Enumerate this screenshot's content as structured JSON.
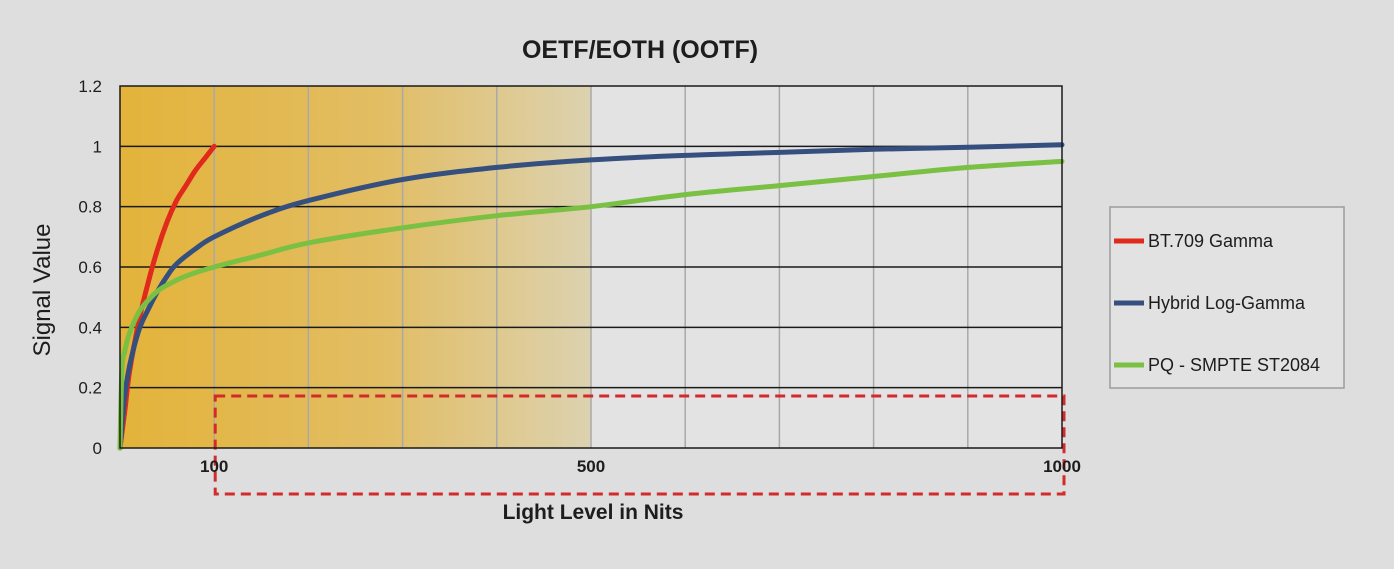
{
  "chart_data": {
    "type": "line",
    "title": "OETF/EOTH  (OOTF)",
    "xlabel": "Light Level in Nits",
    "ylabel": "Signal Value",
    "xlim": [
      0,
      1000
    ],
    "ylim": [
      0,
      1.2
    ],
    "x_ticks": [
      {
        "value": 100,
        "label": "100"
      },
      {
        "value": 500,
        "label": "500"
      },
      {
        "value": 1000,
        "label": "1000"
      }
    ],
    "y_ticks": [
      {
        "value": 0,
        "label": "0"
      },
      {
        "value": 0.2,
        "label": "0.2"
      },
      {
        "value": 0.4,
        "label": "0.4"
      },
      {
        "value": 0.6,
        "label": "0.6"
      },
      {
        "value": 0.8,
        "label": "0.8"
      },
      {
        "value": 1,
        "label": "1"
      },
      {
        "value": 1.2,
        "label": "1.2"
      }
    ],
    "x_grid_step": 100,
    "grid": true,
    "legend_position": "right",
    "highlight_region": {
      "x": [
        0,
        500
      ],
      "color_start": "#e3b33a",
      "color_end": "#dcd2b0"
    },
    "dashed_box": {
      "x": [
        100,
        1000
      ],
      "color": "#d22b2b"
    },
    "series": [
      {
        "name": "BT.709 Gamma",
        "color": "#e02a1c",
        "x": [
          0,
          5,
          10,
          20,
          30,
          40,
          50,
          60,
          70,
          80,
          90,
          100
        ],
        "y": [
          0,
          0.12,
          0.25,
          0.42,
          0.55,
          0.66,
          0.75,
          0.82,
          0.87,
          0.92,
          0.96,
          1.0
        ]
      },
      {
        "name": "Hybrid Log-Gamma",
        "color": "#35507f",
        "x": [
          0,
          5,
          10,
          20,
          30,
          40,
          50,
          60,
          80,
          100,
          150,
          200,
          300,
          400,
          500,
          600,
          700,
          800,
          900,
          1000
        ],
        "y": [
          0,
          0.17,
          0.27,
          0.39,
          0.46,
          0.52,
          0.57,
          0.61,
          0.66,
          0.7,
          0.77,
          0.82,
          0.89,
          0.93,
          0.955,
          0.97,
          0.98,
          0.99,
          0.997,
          1.005
        ]
      },
      {
        "name": "PQ - SMPTE ST2084",
        "color": "#7ac043",
        "x": [
          0,
          2,
          5,
          10,
          20,
          30,
          40,
          50,
          70,
          100,
          150,
          200,
          300,
          400,
          500,
          600,
          700,
          800,
          900,
          1000
        ],
        "y": [
          0,
          0.26,
          0.32,
          0.38,
          0.45,
          0.49,
          0.52,
          0.54,
          0.57,
          0.6,
          0.64,
          0.68,
          0.73,
          0.77,
          0.8,
          0.84,
          0.87,
          0.9,
          0.93,
          0.95
        ]
      }
    ]
  }
}
